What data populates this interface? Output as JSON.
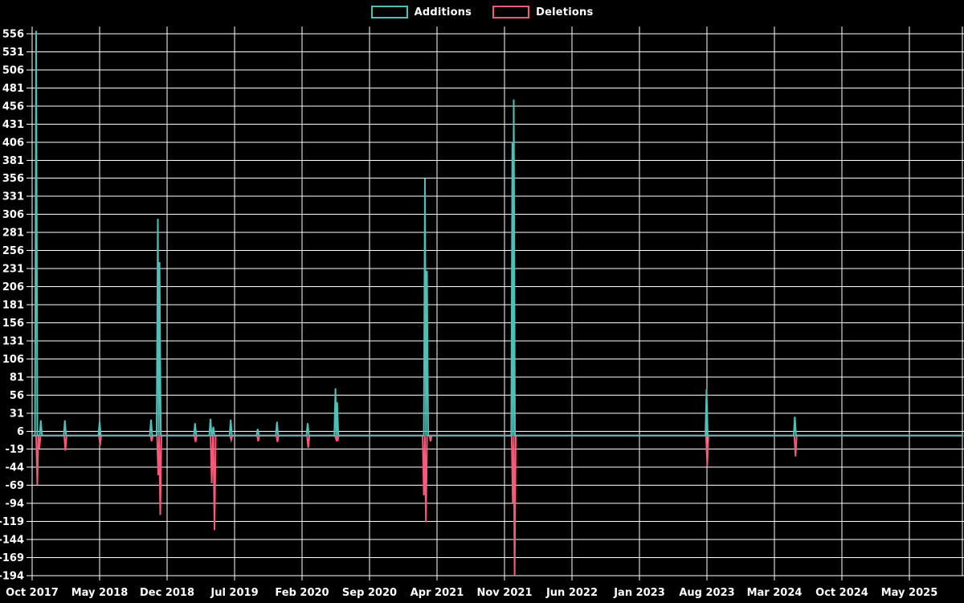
{
  "page": {
    "background": "#000000",
    "text_color": "#ffffff",
    "grid_color": "#ffffff"
  },
  "legend": {
    "items": [
      {
        "label": "Additions",
        "color": "#4ec0b7"
      },
      {
        "label": "Deletions",
        "color": "#f8587a"
      }
    ]
  },
  "chart_data": {
    "type": "line",
    "description": "Weekly additions and deletions spike chart over time; both series sit at 0 between sparse spikes",
    "legend_position": "top-center",
    "grid": true,
    "x_axis": {
      "tick_labels": [
        "Oct 2017",
        "May 2018",
        "Dec 2018",
        "Jul 2019",
        "Feb 2020",
        "Sep 2020",
        "Apr 2021",
        "Nov 2021",
        "Jun 2022",
        "Jan 2023",
        "Aug 2023",
        "Mar 2024",
        "Oct 2024",
        "May 2025"
      ],
      "months_per_tick": 7,
      "months_total": 96.6
    },
    "y_axis": {
      "min": -194,
      "max": 556,
      "step": 25,
      "ticks": [
        556,
        531,
        506,
        481,
        456,
        431,
        406,
        381,
        356,
        331,
        306,
        281,
        256,
        231,
        206,
        181,
        156,
        131,
        106,
        81,
        56,
        31,
        6,
        -19,
        -44,
        -69,
        -94,
        -119,
        -144,
        -169,
        -194
      ]
    },
    "series": [
      {
        "name": "Additions",
        "color": "#4ec0b7",
        "baseline": 0,
        "spikes": [
          {
            "m": 0.42,
            "date": "Oct 2017",
            "value": 560
          },
          {
            "m": 0.9,
            "date": "Oct 2017",
            "value": 21
          },
          {
            "m": 3.4,
            "date": "Jan 2018",
            "value": 21
          },
          {
            "m": 7.0,
            "date": "May 2018",
            "value": 19
          },
          {
            "m": 12.33,
            "date": "Oct 2018",
            "value": 22
          },
          {
            "m": 13.04,
            "date": "Nov 2018",
            "value": 300
          },
          {
            "m": 13.22,
            "date": "Nov 2018",
            "value": 240
          },
          {
            "m": 16.9,
            "date": "Feb 2019",
            "value": 17
          },
          {
            "m": 18.5,
            "date": "Apr 2019",
            "value": 23
          },
          {
            "m": 18.8,
            "date": "May 2019",
            "value": 12
          },
          {
            "m": 20.6,
            "date": "Jun 2019",
            "value": 22
          },
          {
            "m": 23.4,
            "date": "Sep 2019",
            "value": 9
          },
          {
            "m": 25.4,
            "date": "Nov 2019",
            "value": 19
          },
          {
            "m": 28.58,
            "date": "Feb 2020",
            "value": 17
          },
          {
            "m": 31.47,
            "date": "May 2020",
            "value": 65
          },
          {
            "m": 31.64,
            "date": "Jun 2020",
            "value": 46
          },
          {
            "m": 40.75,
            "date": "Feb 2021",
            "value": 356
          },
          {
            "m": 40.96,
            "date": "Mar 2021",
            "value": 228
          },
          {
            "m": 49.82,
            "date": "Nov 2021",
            "value": 406
          },
          {
            "m": 49.96,
            "date": "Dec 2021",
            "value": 465
          },
          {
            "m": 69.96,
            "date": "Aug 2023",
            "value": 64
          },
          {
            "m": 79.12,
            "date": "May 2024",
            "value": 26
          }
        ]
      },
      {
        "name": "Deletions",
        "color": "#f8587a",
        "baseline": 0,
        "spikes": [
          {
            "m": 0.54,
            "date": "Oct 2017",
            "value": -68
          },
          {
            "m": 0.75,
            "date": "Oct 2017",
            "value": -18
          },
          {
            "m": 3.45,
            "date": "Jan 2018",
            "value": -21
          },
          {
            "m": 7.05,
            "date": "May 2018",
            "value": -14
          },
          {
            "m": 12.4,
            "date": "Oct 2018",
            "value": -8
          },
          {
            "m": 13.08,
            "date": "Nov 2018",
            "value": -55
          },
          {
            "m": 13.29,
            "date": "Nov 2018",
            "value": -110
          },
          {
            "m": 16.95,
            "date": "Feb 2019",
            "value": -9
          },
          {
            "m": 18.63,
            "date": "Apr 2019",
            "value": -66
          },
          {
            "m": 18.92,
            "date": "May 2019",
            "value": -131
          },
          {
            "m": 20.65,
            "date": "Jun 2019",
            "value": -6
          },
          {
            "m": 23.45,
            "date": "Sep 2019",
            "value": -8
          },
          {
            "m": 25.45,
            "date": "Nov 2019",
            "value": -9
          },
          {
            "m": 28.64,
            "date": "Feb 2020",
            "value": -17
          },
          {
            "m": 31.53,
            "date": "May 2020",
            "value": -5
          },
          {
            "m": 31.69,
            "date": "Jun 2020",
            "value": -8
          },
          {
            "m": 40.63,
            "date": "Feb 2021",
            "value": -83
          },
          {
            "m": 40.85,
            "date": "Mar 2021",
            "value": -120
          },
          {
            "m": 41.33,
            "date": "Mar 2021",
            "value": -8
          },
          {
            "m": 49.86,
            "date": "Nov 2021",
            "value": -93
          },
          {
            "m": 50.05,
            "date": "Dec 2021",
            "value": -193
          },
          {
            "m": 70.03,
            "date": "Aug 2023",
            "value": -42
          },
          {
            "m": 79.19,
            "date": "May 2024",
            "value": -29
          }
        ]
      }
    ]
  }
}
